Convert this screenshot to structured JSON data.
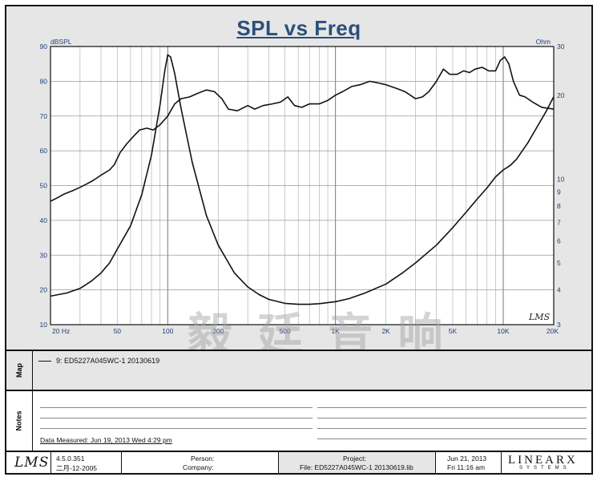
{
  "chart_data": {
    "type": "line",
    "title": "SPL vs Freq",
    "x_scale": "log",
    "xlim": [
      20,
      20000
    ],
    "left_axis": {
      "label": "dBSPL",
      "ylim": [
        10,
        90
      ],
      "ticks": [
        10,
        20,
        30,
        40,
        50,
        60,
        70,
        80,
        90
      ]
    },
    "right_axis": {
      "label": "Ohm",
      "scale": "log",
      "ylim": [
        3,
        30
      ],
      "ticks": [
        3,
        4,
        5,
        6,
        7,
        8,
        9,
        10,
        20,
        30
      ]
    },
    "x_ticks": [
      {
        "value": 20,
        "label": "20 Hz"
      },
      {
        "value": 50,
        "label": "50"
      },
      {
        "value": 100,
        "label": "100"
      },
      {
        "value": 200,
        "label": "200"
      },
      {
        "value": 500,
        "label": "500"
      },
      {
        "value": 1000,
        "label": "1K"
      },
      {
        "value": 2000,
        "label": "2K"
      },
      {
        "value": 5000,
        "label": "5K"
      },
      {
        "value": 10000,
        "label": "10K"
      },
      {
        "value": 20000,
        "label": "20K"
      }
    ],
    "grid": true,
    "series": [
      {
        "name": "SPL",
        "axis": "left",
        "color": "#111111",
        "points": [
          [
            20,
            45.5
          ],
          [
            22,
            46.5
          ],
          [
            24,
            47.5
          ],
          [
            27,
            48.5
          ],
          [
            30,
            49.5
          ],
          [
            33,
            50.5
          ],
          [
            36,
            51.5
          ],
          [
            40,
            53
          ],
          [
            45,
            54.5
          ],
          [
            48,
            56
          ],
          [
            52,
            59.5
          ],
          [
            57,
            62
          ],
          [
            62,
            64
          ],
          [
            68,
            66
          ],
          [
            75,
            66.5
          ],
          [
            82,
            66
          ],
          [
            90,
            67.5
          ],
          [
            100,
            70
          ],
          [
            110,
            73.5
          ],
          [
            120,
            75
          ],
          [
            135,
            75.5
          ],
          [
            150,
            76.5
          ],
          [
            170,
            77.5
          ],
          [
            190,
            77
          ],
          [
            210,
            75
          ],
          [
            230,
            72
          ],
          [
            260,
            71.5
          ],
          [
            300,
            73
          ],
          [
            330,
            72
          ],
          [
            370,
            73
          ],
          [
            420,
            73.5
          ],
          [
            470,
            74
          ],
          [
            520,
            75.5
          ],
          [
            570,
            73
          ],
          [
            630,
            72.5
          ],
          [
            700,
            73.5
          ],
          [
            800,
            73.5
          ],
          [
            900,
            74.5
          ],
          [
            1000,
            76
          ],
          [
            1100,
            77
          ],
          [
            1250,
            78.5
          ],
          [
            1400,
            79
          ],
          [
            1600,
            80
          ],
          [
            1800,
            79.5
          ],
          [
            2000,
            79
          ],
          [
            2300,
            78
          ],
          [
            2600,
            77
          ],
          [
            3000,
            75
          ],
          [
            3300,
            75.5
          ],
          [
            3600,
            77
          ],
          [
            4000,
            80
          ],
          [
            4400,
            83.5
          ],
          [
            4800,
            82
          ],
          [
            5300,
            82
          ],
          [
            5800,
            83
          ],
          [
            6300,
            82.5
          ],
          [
            6800,
            83.5
          ],
          [
            7500,
            84
          ],
          [
            8200,
            83
          ],
          [
            9000,
            83
          ],
          [
            9600,
            86
          ],
          [
            10200,
            87
          ],
          [
            10800,
            85
          ],
          [
            11500,
            80
          ],
          [
            12500,
            76
          ],
          [
            13500,
            75.5
          ],
          [
            15000,
            74
          ],
          [
            17000,
            72.5
          ],
          [
            20000,
            72
          ]
        ]
      },
      {
        "name": "Impedance",
        "axis": "right",
        "color": "#111111",
        "points": [
          [
            20,
            3.8
          ],
          [
            25,
            3.9
          ],
          [
            30,
            4.05
          ],
          [
            35,
            4.3
          ],
          [
            40,
            4.6
          ],
          [
            45,
            5.0
          ],
          [
            50,
            5.6
          ],
          [
            60,
            6.8
          ],
          [
            70,
            8.8
          ],
          [
            80,
            12.2
          ],
          [
            90,
            18.5
          ],
          [
            96,
            24.5
          ],
          [
            100,
            28.0
          ],
          [
            104,
            27.5
          ],
          [
            110,
            24.0
          ],
          [
            120,
            18.0
          ],
          [
            140,
            11.5
          ],
          [
            170,
            7.4
          ],
          [
            200,
            5.8
          ],
          [
            250,
            4.6
          ],
          [
            300,
            4.1
          ],
          [
            350,
            3.85
          ],
          [
            400,
            3.7
          ],
          [
            500,
            3.58
          ],
          [
            600,
            3.55
          ],
          [
            700,
            3.55
          ],
          [
            800,
            3.57
          ],
          [
            1000,
            3.63
          ],
          [
            1200,
            3.72
          ],
          [
            1500,
            3.9
          ],
          [
            2000,
            4.2
          ],
          [
            2500,
            4.6
          ],
          [
            3000,
            5.0
          ],
          [
            4000,
            5.8
          ],
          [
            5000,
            6.7
          ],
          [
            6000,
            7.6
          ],
          [
            7000,
            8.5
          ],
          [
            8000,
            9.3
          ],
          [
            9000,
            10.2
          ],
          [
            10000,
            10.8
          ],
          [
            11000,
            11.2
          ],
          [
            12000,
            11.8
          ],
          [
            14000,
            13.5
          ],
          [
            16000,
            15.5
          ],
          [
            18000,
            17.5
          ],
          [
            20000,
            19.8
          ]
        ]
      }
    ]
  },
  "map": {
    "label": "Map",
    "entry": "9: ED5227A045WC-1  20130619"
  },
  "notes": {
    "label": "Notes",
    "measured": "Data Measured: Jun 19, 2013  Wed  4:29 pm"
  },
  "footer": {
    "logo": "LMS",
    "version": "4.5.0.351",
    "version_date": "二月-12-2005",
    "person_label": "Person:",
    "company_label": "Company:",
    "project_label": "Project:",
    "file_label": "File: ED5227A045WC-1  20130619.lib",
    "date": "Jun 21, 2013",
    "time": "Fri 11:16 am",
    "brand_top": "LINEARX",
    "brand_bottom": "SYSTEMS"
  },
  "watermark": "毅 廷 音 响",
  "corner_logo": "LMS"
}
